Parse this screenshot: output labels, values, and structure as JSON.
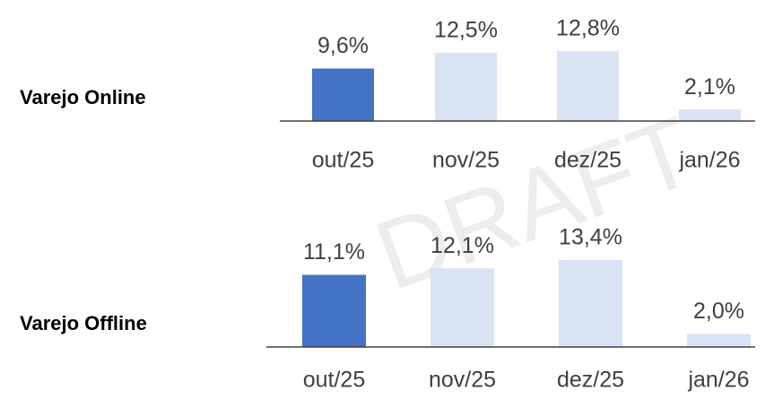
{
  "watermark": "DRAFT",
  "chart_data": [
    {
      "type": "bar",
      "title": "Varejo Online",
      "categories": [
        "out/25",
        "nov/25",
        "dez/25",
        "jan/26"
      ],
      "values": [
        9.6,
        12.5,
        12.8,
        2.1
      ],
      "value_labels": [
        "9,6%",
        "12,5%",
        "12,8%",
        "2,1%"
      ],
      "colors": [
        "#4472c4",
        "#dae3f3",
        "#dae3f3",
        "#dae3f3"
      ]
    },
    {
      "type": "bar",
      "title": "Varejo Offline",
      "categories": [
        "out/25",
        "nov/25",
        "dez/25",
        "jan/26"
      ],
      "values": [
        11.1,
        12.1,
        13.4,
        2.0
      ],
      "value_labels": [
        "11,1%",
        "12,1%",
        "13,4%",
        "2,0%"
      ],
      "colors": [
        "#4472c4",
        "#dae3f3",
        "#dae3f3",
        "#dae3f3"
      ]
    }
  ]
}
